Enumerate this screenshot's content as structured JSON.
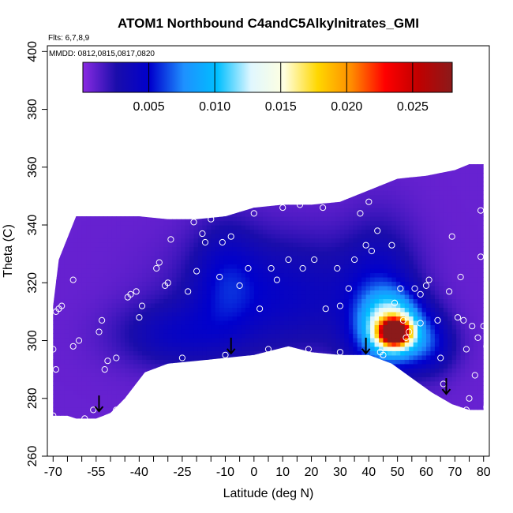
{
  "chart_data": {
    "type": "heatmap",
    "title": "ATOM1 Northbound C4andC5Alkylnitrates_GMI",
    "flights_note": "Flts: 6,7,8,9",
    "dates_note": "MMDD: 0812,0815,0817,0820",
    "xlabel": "Latitude (deg N)",
    "ylabel": "Theta (C)",
    "xlim": [
      -72,
      82
    ],
    "ylim": [
      260,
      402
    ],
    "x_ticks": [
      -70,
      -55,
      -40,
      -25,
      -10,
      0,
      10,
      20,
      30,
      40,
      50,
      60,
      70,
      80
    ],
    "x_minor_ticks": [
      -65,
      -60,
      -50,
      -45,
      -35,
      -30,
      -20,
      -15,
      -5,
      5,
      15,
      25,
      35,
      45,
      55,
      65,
      75
    ],
    "y_ticks": [
      260,
      280,
      300,
      320,
      340,
      360,
      380,
      400
    ],
    "colorbar": {
      "range": [
        0.0,
        0.028
      ],
      "ticks": [
        0.005,
        0.01,
        0.015,
        0.02,
        0.025
      ],
      "tick_labels": [
        "0.005",
        "0.010",
        "0.015",
        "0.020",
        "0.025"
      ],
      "colors": [
        "#8a2be2",
        "#1a0dab",
        "#0000cd",
        "#1e90ff",
        "#00bfff",
        "#e0f7ff",
        "#ffffe0",
        "#ffd700",
        "#ff8c00",
        "#ff0000",
        "#c00000",
        "#8b1a1a"
      ]
    },
    "background_value": 0.0008,
    "field_upper_boundary": [
      [
        -70,
        312
      ],
      [
        -68,
        328
      ],
      [
        -64,
        338
      ],
      [
        -62,
        343
      ],
      [
        -50,
        343
      ],
      [
        -40,
        343
      ],
      [
        -30,
        342
      ],
      [
        -20,
        342
      ],
      [
        -10,
        343
      ],
      [
        0,
        346
      ],
      [
        10,
        347
      ],
      [
        20,
        347
      ],
      [
        30,
        348
      ],
      [
        40,
        352
      ],
      [
        50,
        356
      ],
      [
        60,
        357
      ],
      [
        70,
        359
      ],
      [
        75,
        361
      ],
      [
        80,
        361
      ]
    ],
    "field_lower_boundary": [
      [
        80,
        276
      ],
      [
        75,
        276
      ],
      [
        69,
        278
      ],
      [
        62,
        282
      ],
      [
        55,
        287
      ],
      [
        48,
        292
      ],
      [
        40,
        295
      ],
      [
        30,
        295
      ],
      [
        20,
        296
      ],
      [
        12,
        298
      ],
      [
        0,
        295
      ],
      [
        -10,
        294
      ],
      [
        -20,
        293
      ],
      [
        -30,
        292
      ],
      [
        -38,
        289
      ],
      [
        -45,
        280
      ],
      [
        -50,
        275
      ],
      [
        -55,
        273
      ],
      [
        -62,
        273
      ],
      [
        -65,
        274
      ],
      [
        -70,
        274
      ]
    ],
    "enhancements": [
      {
        "lat": 49,
        "theta": 303,
        "value": 0.026,
        "sx": 3.5,
        "sy": 3.0
      },
      {
        "lat": 48,
        "theta": 306,
        "value": 0.01,
        "sx": 7.0,
        "sy": 7.0
      },
      {
        "lat": 44,
        "theta": 312,
        "value": 0.004,
        "sx": 9.0,
        "sy": 18.0
      },
      {
        "lat": 52,
        "theta": 298,
        "value": 0.003,
        "sx": 10.0,
        "sy": 6.0
      },
      {
        "lat": 8,
        "theta": 316,
        "value": 0.0035,
        "sx": 22.0,
        "sy": 14.0
      },
      {
        "lat": -28,
        "theta": 302,
        "value": 0.0028,
        "sx": 14.0,
        "sy": 8.0
      },
      {
        "lat": -10,
        "theta": 322,
        "value": 0.0025,
        "sx": 8.0,
        "sy": 14.0
      },
      {
        "lat": 62,
        "theta": 300,
        "value": 0.0025,
        "sx": 6.0,
        "sy": 8.0
      }
    ],
    "sample_points": [
      [
        -70,
        274
      ],
      [
        -69,
        290
      ],
      [
        -70,
        297
      ],
      [
        -69,
        310
      ],
      [
        -68,
        311
      ],
      [
        -67,
        312
      ],
      [
        -63,
        321
      ],
      [
        -63,
        298
      ],
      [
        -61,
        300
      ],
      [
        -59,
        273
      ],
      [
        -56,
        276
      ],
      [
        -54,
        303
      ],
      [
        -53,
        307
      ],
      [
        -52,
        290
      ],
      [
        -51,
        293
      ],
      [
        -48,
        276
      ],
      [
        -48,
        294
      ],
      [
        -44,
        315
      ],
      [
        -43,
        316
      ],
      [
        -41,
        317
      ],
      [
        -40,
        308
      ],
      [
        -39,
        312
      ],
      [
        -37,
        288
      ],
      [
        -34,
        325
      ],
      [
        -33,
        327
      ],
      [
        -31,
        319
      ],
      [
        -30,
        320
      ],
      [
        -29,
        335
      ],
      [
        -27,
        291
      ],
      [
        -25,
        294
      ],
      [
        -23,
        317
      ],
      [
        -21,
        341
      ],
      [
        -20,
        324
      ],
      [
        -18,
        337
      ],
      [
        -17,
        334
      ],
      [
        -15,
        342
      ],
      [
        -12,
        322
      ],
      [
        -11,
        334
      ],
      [
        -10,
        295
      ],
      [
        -8,
        346
      ],
      [
        -8,
        336
      ],
      [
        -5,
        319
      ],
      [
        -2,
        325
      ],
      [
        0,
        344
      ],
      [
        2,
        311
      ],
      [
        5,
        297
      ],
      [
        6,
        325
      ],
      [
        8,
        321
      ],
      [
        10,
        346
      ],
      [
        12,
        328
      ],
      [
        16,
        347
      ],
      [
        17,
        325
      ],
      [
        19,
        297
      ],
      [
        21,
        328
      ],
      [
        24,
        346
      ],
      [
        25,
        311
      ],
      [
        29,
        325
      ],
      [
        30,
        312
      ],
      [
        30,
        296
      ],
      [
        33,
        318
      ],
      [
        35,
        328
      ],
      [
        37,
        344
      ],
      [
        39,
        333
      ],
      [
        40,
        348
      ],
      [
        41,
        331
      ],
      [
        43,
        338
      ],
      [
        44,
        296
      ],
      [
        45,
        295
      ],
      [
        48,
        333
      ],
      [
        49,
        313
      ],
      [
        51,
        318
      ],
      [
        52,
        307
      ],
      [
        53,
        301
      ],
      [
        54,
        303
      ],
      [
        56,
        318
      ],
      [
        58,
        316
      ],
      [
        58,
        306
      ],
      [
        60,
        319
      ],
      [
        61,
        321
      ],
      [
        64,
        307
      ],
      [
        65,
        294
      ],
      [
        66,
        285
      ],
      [
        68,
        317
      ],
      [
        69,
        336
      ],
      [
        71,
        308
      ],
      [
        72,
        322
      ],
      [
        73,
        307
      ],
      [
        74,
        297
      ],
      [
        74,
        276
      ],
      [
        75,
        280
      ],
      [
        76,
        305
      ],
      [
        77,
        288
      ],
      [
        78,
        301
      ],
      [
        79,
        329
      ],
      [
        79,
        345
      ],
      [
        80,
        305
      ],
      [
        81,
        298
      ],
      [
        81,
        277
      ]
    ],
    "arrows": [
      [
        -54,
        281
      ],
      [
        -8,
        301
      ],
      [
        39,
        301
      ],
      [
        67,
        287
      ]
    ]
  }
}
